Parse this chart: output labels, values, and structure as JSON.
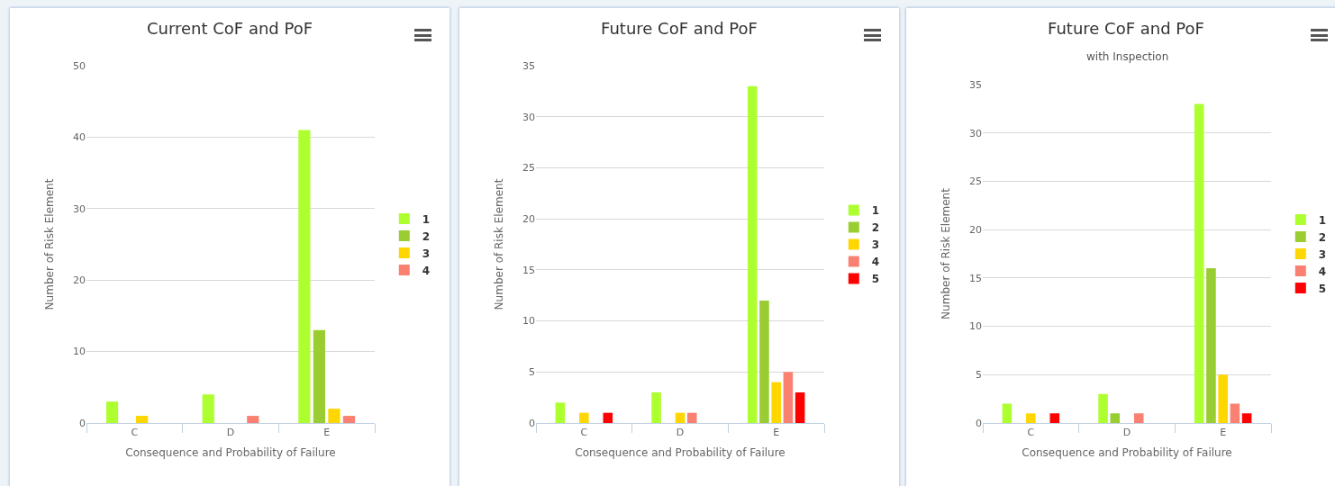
{
  "chart_data": [
    {
      "type": "bar",
      "title": "Current CoF and PoF",
      "xlabel": "Consequence and Probability of Failure",
      "ylabel": "Number of Risk Element",
      "categories": [
        "C",
        "D",
        "E"
      ],
      "ylim": [
        0,
        50
      ],
      "yticks": [
        0,
        10,
        20,
        30,
        40,
        50
      ],
      "grid": "y",
      "legend": "right",
      "series": [
        {
          "name": "1",
          "color": "#adff2f",
          "values": [
            3,
            4,
            41
          ]
        },
        {
          "name": "2",
          "color": "#9acd32",
          "values": [
            0,
            0,
            13
          ]
        },
        {
          "name": "3",
          "color": "#ffd700",
          "values": [
            1,
            0,
            2
          ]
        },
        {
          "name": "4",
          "color": "#fa8072",
          "values": [
            0,
            1,
            1
          ]
        }
      ]
    },
    {
      "type": "bar",
      "title": "Future CoF and PoF",
      "xlabel": "Consequence and Probability of Failure",
      "ylabel": "Number of Risk Element",
      "categories": [
        "C",
        "D",
        "E"
      ],
      "ylim": [
        0,
        35
      ],
      "yticks": [
        0,
        5,
        10,
        15,
        20,
        25,
        30,
        35
      ],
      "grid": "y",
      "legend": "right",
      "series": [
        {
          "name": "1",
          "color": "#adff2f",
          "values": [
            2,
            3,
            33
          ]
        },
        {
          "name": "2",
          "color": "#9acd32",
          "values": [
            0,
            0,
            12
          ]
        },
        {
          "name": "3",
          "color": "#ffd700",
          "values": [
            1,
            1,
            4
          ]
        },
        {
          "name": "4",
          "color": "#fa8072",
          "values": [
            0,
            1,
            5
          ]
        },
        {
          "name": "5",
          "color": "#ff0000",
          "values": [
            1,
            0,
            3
          ]
        }
      ]
    },
    {
      "type": "bar",
      "title": "Future CoF and PoF",
      "subtitle": "with Inspection",
      "xlabel": "Consequence and Probability of Failure",
      "ylabel": "Number of Risk Element",
      "categories": [
        "C",
        "D",
        "E"
      ],
      "ylim": [
        0,
        35
      ],
      "yticks": [
        0,
        5,
        10,
        15,
        20,
        25,
        30,
        35
      ],
      "grid": "y",
      "legend": "right",
      "series": [
        {
          "name": "1",
          "color": "#adff2f",
          "values": [
            2,
            3,
            33
          ]
        },
        {
          "name": "2",
          "color": "#9acd32",
          "values": [
            0,
            1,
            16
          ]
        },
        {
          "name": "3",
          "color": "#ffd700",
          "values": [
            1,
            0,
            5
          ]
        },
        {
          "name": "4",
          "color": "#fa8072",
          "values": [
            0,
            1,
            2
          ]
        },
        {
          "name": "5",
          "color": "#ff0000",
          "values": [
            1,
            0,
            1
          ]
        }
      ]
    }
  ]
}
